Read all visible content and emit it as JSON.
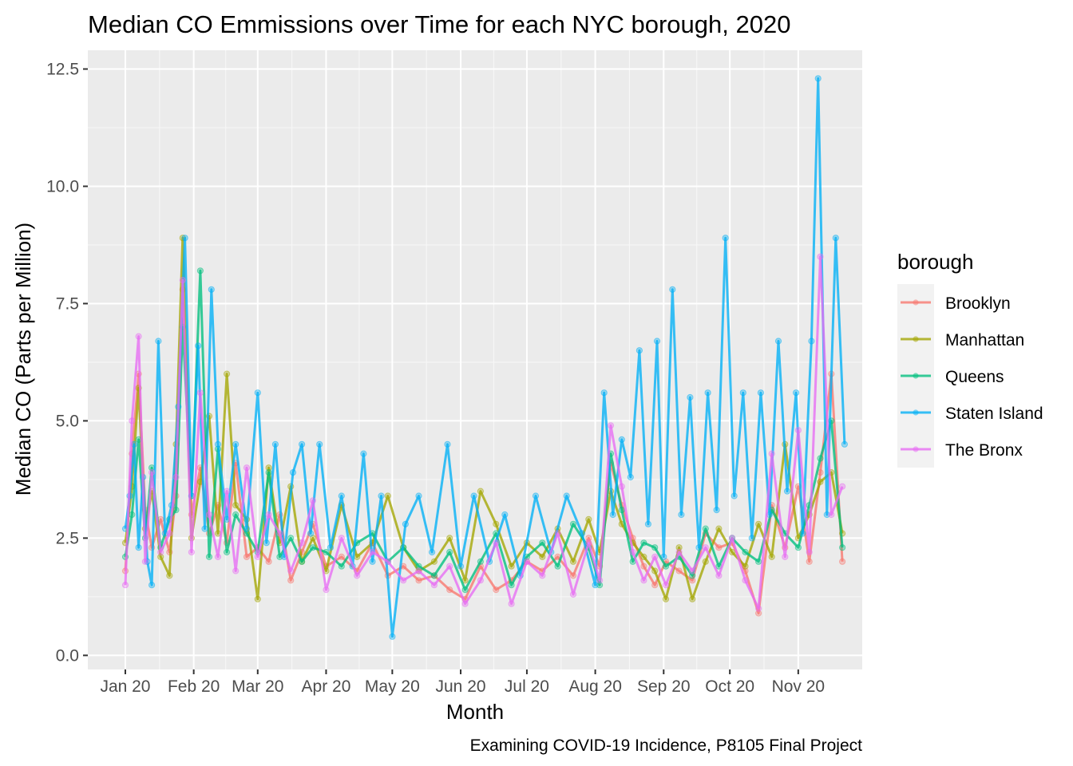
{
  "chart_data": {
    "type": "line",
    "title": "Median CO Emmissions over Time for each NYC borough, 2020",
    "xlabel": "Month",
    "ylabel": "Median CO (Parts per Million)",
    "caption": "Examining COVID-19 Incidence, P8105 Final Project",
    "legend_title": "borough",
    "legend_position": "right",
    "grid": true,
    "x_ticks": [
      "Jan 20",
      "Feb 20",
      "Mar 20",
      "Apr 20",
      "May 20",
      "Jun 20",
      "Jul 20",
      "Aug 20",
      "Sep 20",
      "Oct 20",
      "Nov 20"
    ],
    "x_tick_dates": [
      "2020-01-01",
      "2020-02-01",
      "2020-03-01",
      "2020-04-01",
      "2020-05-01",
      "2020-06-01",
      "2020-07-01",
      "2020-08-01",
      "2020-09-01",
      "2020-10-01",
      "2020-11-01"
    ],
    "xlim": [
      "2019-12-15",
      "2020-11-30"
    ],
    "y_ticks": [
      "0.0",
      "2.5",
      "5.0",
      "7.5",
      "10.0",
      "12.5"
    ],
    "ylim": [
      -0.3,
      12.9
    ],
    "colors": {
      "Brooklyn": "#F8766D",
      "Manhattan": "#A3A500",
      "Queens": "#00BF7D",
      "Staten Island": "#00B0F6",
      "The Bronx": "#E76BF3"
    },
    "series": [
      {
        "name": "Brooklyn",
        "x": [
          "2020-01-01",
          "2020-01-04",
          "2020-01-07",
          "2020-01-10",
          "2020-01-13",
          "2020-01-17",
          "2020-01-21",
          "2020-01-24",
          "2020-01-27",
          "2020-01-31",
          "2020-02-04",
          "2020-02-08",
          "2020-02-12",
          "2020-02-16",
          "2020-02-20",
          "2020-02-25",
          "2020-03-01",
          "2020-03-06",
          "2020-03-11",
          "2020-03-16",
          "2020-03-21",
          "2020-03-26",
          "2020-04-01",
          "2020-04-08",
          "2020-04-15",
          "2020-04-22",
          "2020-04-29",
          "2020-05-06",
          "2020-05-13",
          "2020-05-20",
          "2020-05-27",
          "2020-06-03",
          "2020-06-10",
          "2020-06-17",
          "2020-06-24",
          "2020-07-01",
          "2020-07-08",
          "2020-07-15",
          "2020-07-22",
          "2020-07-29",
          "2020-08-03",
          "2020-08-08",
          "2020-08-13",
          "2020-08-18",
          "2020-08-23",
          "2020-08-28",
          "2020-09-02",
          "2020-09-08",
          "2020-09-14",
          "2020-09-20",
          "2020-09-26",
          "2020-10-02",
          "2020-10-08",
          "2020-10-14",
          "2020-10-20",
          "2020-10-26",
          "2020-11-01",
          "2020-11-06",
          "2020-11-11",
          "2020-11-16",
          "2020-11-21"
        ],
        "values": [
          1.8,
          4.3,
          6.0,
          3.1,
          2.3,
          2.9,
          2.2,
          3.4,
          7.8,
          3.0,
          4.0,
          2.6,
          3.2,
          2.4,
          4.1,
          2.1,
          2.3,
          2.0,
          3.0,
          1.6,
          2.2,
          2.8,
          1.9,
          2.1,
          1.8,
          2.4,
          1.7,
          1.9,
          1.6,
          1.7,
          1.4,
          1.2,
          1.9,
          1.4,
          1.6,
          2.0,
          1.8,
          2.1,
          1.7,
          2.5,
          1.9,
          4.1,
          3.2,
          2.5,
          1.9,
          1.5,
          2.0,
          1.8,
          1.6,
          2.6,
          2.3,
          2.4,
          1.8,
          0.9,
          3.2,
          2.3,
          3.6,
          2.0,
          3.9,
          6.0,
          2.0
        ]
      },
      {
        "name": "Manhattan",
        "x": [
          "2020-01-01",
          "2020-01-04",
          "2020-01-07",
          "2020-01-10",
          "2020-01-13",
          "2020-01-17",
          "2020-01-21",
          "2020-01-24",
          "2020-01-27",
          "2020-01-31",
          "2020-02-04",
          "2020-02-08",
          "2020-02-12",
          "2020-02-16",
          "2020-02-20",
          "2020-02-25",
          "2020-03-01",
          "2020-03-06",
          "2020-03-11",
          "2020-03-16",
          "2020-03-21",
          "2020-03-26",
          "2020-04-01",
          "2020-04-08",
          "2020-04-15",
          "2020-04-22",
          "2020-04-29",
          "2020-05-06",
          "2020-05-13",
          "2020-05-20",
          "2020-05-27",
          "2020-06-03",
          "2020-06-10",
          "2020-06-17",
          "2020-06-24",
          "2020-07-01",
          "2020-07-08",
          "2020-07-15",
          "2020-07-22",
          "2020-07-29",
          "2020-08-03",
          "2020-08-08",
          "2020-08-13",
          "2020-08-18",
          "2020-08-23",
          "2020-08-28",
          "2020-09-02",
          "2020-09-08",
          "2020-09-14",
          "2020-09-20",
          "2020-09-26",
          "2020-10-02",
          "2020-10-08",
          "2020-10-14",
          "2020-10-20",
          "2020-10-26",
          "2020-11-01",
          "2020-11-06",
          "2020-11-11",
          "2020-11-16",
          "2020-11-21"
        ],
        "values": [
          2.4,
          3.6,
          5.7,
          2.7,
          3.5,
          2.1,
          1.7,
          4.5,
          8.9,
          2.5,
          3.7,
          5.1,
          2.6,
          6.0,
          3.2,
          2.9,
          1.2,
          4.0,
          2.4,
          3.6,
          2.0,
          2.5,
          1.8,
          3.2,
          2.1,
          2.4,
          3.4,
          2.3,
          1.8,
          2.0,
          2.5,
          1.6,
          3.5,
          2.8,
          1.9,
          2.4,
          2.1,
          2.7,
          2.0,
          2.9,
          2.2,
          3.5,
          2.8,
          2.4,
          2.1,
          1.8,
          1.2,
          2.3,
          1.2,
          2.0,
          2.7,
          2.2,
          1.9,
          2.8,
          2.1,
          4.5,
          2.5,
          3.0,
          3.7,
          3.9,
          2.6
        ]
      },
      {
        "name": "Queens",
        "x": [
          "2020-01-01",
          "2020-01-04",
          "2020-01-07",
          "2020-01-10",
          "2020-01-13",
          "2020-01-17",
          "2020-01-21",
          "2020-01-24",
          "2020-01-27",
          "2020-01-31",
          "2020-02-04",
          "2020-02-08",
          "2020-02-12",
          "2020-02-16",
          "2020-02-20",
          "2020-02-25",
          "2020-03-01",
          "2020-03-06",
          "2020-03-11",
          "2020-03-16",
          "2020-03-21",
          "2020-03-26",
          "2020-04-01",
          "2020-04-08",
          "2020-04-15",
          "2020-04-22",
          "2020-04-29",
          "2020-05-06",
          "2020-05-13",
          "2020-05-20",
          "2020-05-27",
          "2020-06-03",
          "2020-06-10",
          "2020-06-17",
          "2020-06-24",
          "2020-07-01",
          "2020-07-08",
          "2020-07-15",
          "2020-07-22",
          "2020-07-29",
          "2020-08-03",
          "2020-08-08",
          "2020-08-13",
          "2020-08-18",
          "2020-08-23",
          "2020-08-28",
          "2020-09-02",
          "2020-09-08",
          "2020-09-14",
          "2020-09-20",
          "2020-09-26",
          "2020-10-02",
          "2020-10-08",
          "2020-10-14",
          "2020-10-20",
          "2020-10-26",
          "2020-11-01",
          "2020-11-06",
          "2020-11-11",
          "2020-11-16",
          "2020-11-21"
        ],
        "values": [
          2.1,
          3.0,
          4.6,
          2.5,
          4.0,
          2.3,
          2.9,
          3.1,
          7.0,
          3.4,
          8.2,
          2.1,
          4.4,
          2.2,
          3.0,
          2.6,
          2.2,
          3.9,
          2.1,
          2.5,
          2.0,
          2.3,
          2.2,
          1.9,
          2.4,
          2.6,
          2.0,
          2.3,
          1.9,
          1.7,
          2.2,
          1.4,
          2.0,
          2.6,
          1.5,
          2.1,
          2.4,
          1.9,
          2.8,
          2.3,
          1.5,
          4.3,
          3.1,
          2.0,
          2.4,
          2.3,
          1.9,
          2.1,
          1.7,
          2.7,
          1.9,
          2.5,
          2.2,
          2.0,
          3.1,
          2.6,
          2.3,
          3.2,
          4.2,
          5.0,
          2.3
        ]
      },
      {
        "name": "Staten Island",
        "x": [
          "2020-01-01",
          "2020-01-03",
          "2020-01-05",
          "2020-01-07",
          "2020-01-09",
          "2020-01-11",
          "2020-01-13",
          "2020-01-16",
          "2020-01-19",
          "2020-01-22",
          "2020-01-25",
          "2020-01-28",
          "2020-01-31",
          "2020-02-03",
          "2020-02-06",
          "2020-02-09",
          "2020-02-12",
          "2020-02-16",
          "2020-02-20",
          "2020-02-25",
          "2020-03-01",
          "2020-03-05",
          "2020-03-09",
          "2020-03-13",
          "2020-03-17",
          "2020-03-21",
          "2020-03-25",
          "2020-03-29",
          "2020-04-03",
          "2020-04-08",
          "2020-04-13",
          "2020-04-18",
          "2020-04-22",
          "2020-04-26",
          "2020-05-01",
          "2020-05-07",
          "2020-05-13",
          "2020-05-19",
          "2020-05-26",
          "2020-06-01",
          "2020-06-07",
          "2020-06-14",
          "2020-06-21",
          "2020-06-28",
          "2020-07-05",
          "2020-07-12",
          "2020-07-19",
          "2020-07-26",
          "2020-08-01",
          "2020-08-05",
          "2020-08-09",
          "2020-08-13",
          "2020-08-17",
          "2020-08-21",
          "2020-08-25",
          "2020-08-29",
          "2020-09-01",
          "2020-09-05",
          "2020-09-09",
          "2020-09-13",
          "2020-09-17",
          "2020-09-21",
          "2020-09-25",
          "2020-09-29",
          "2020-10-03",
          "2020-10-07",
          "2020-10-11",
          "2020-10-15",
          "2020-10-19",
          "2020-10-23",
          "2020-10-27",
          "2020-10-31",
          "2020-11-03",
          "2020-11-07",
          "2020-11-10",
          "2020-11-14",
          "2020-11-18",
          "2020-11-22"
        ],
        "values": [
          2.7,
          3.4,
          4.5,
          2.3,
          3.8,
          2.0,
          1.5,
          6.7,
          2.6,
          3.2,
          5.3,
          8.9,
          3.4,
          6.6,
          2.7,
          7.8,
          4.5,
          2.9,
          4.5,
          2.7,
          5.6,
          2.4,
          4.5,
          2.1,
          3.9,
          4.5,
          2.6,
          4.5,
          2.3,
          3.4,
          1.9,
          4.3,
          2.0,
          3.4,
          0.4,
          2.8,
          3.4,
          2.2,
          4.5,
          1.9,
          3.4,
          2.0,
          3.0,
          1.7,
          3.4,
          2.2,
          3.4,
          2.6,
          1.5,
          5.6,
          3.0,
          4.6,
          3.8,
          6.5,
          2.8,
          6.7,
          2.1,
          7.8,
          3.0,
          5.5,
          2.3,
          5.6,
          3.1,
          8.9,
          3.4,
          5.6,
          2.5,
          5.6,
          3.0,
          6.7,
          3.5,
          5.6,
          2.6,
          6.7,
          12.3,
          3.0,
          8.9,
          4.5
        ]
      },
      {
        "name": "The Bronx",
        "x": [
          "2020-01-01",
          "2020-01-04",
          "2020-01-07",
          "2020-01-10",
          "2020-01-13",
          "2020-01-17",
          "2020-01-21",
          "2020-01-24",
          "2020-01-27",
          "2020-01-31",
          "2020-02-04",
          "2020-02-08",
          "2020-02-12",
          "2020-02-16",
          "2020-02-20",
          "2020-02-25",
          "2020-03-01",
          "2020-03-06",
          "2020-03-11",
          "2020-03-16",
          "2020-03-21",
          "2020-03-26",
          "2020-04-01",
          "2020-04-08",
          "2020-04-15",
          "2020-04-22",
          "2020-04-29",
          "2020-05-06",
          "2020-05-13",
          "2020-05-20",
          "2020-05-27",
          "2020-06-03",
          "2020-06-10",
          "2020-06-17",
          "2020-06-24",
          "2020-07-01",
          "2020-07-08",
          "2020-07-15",
          "2020-07-22",
          "2020-07-29",
          "2020-08-03",
          "2020-08-08",
          "2020-08-13",
          "2020-08-18",
          "2020-08-23",
          "2020-08-28",
          "2020-09-02",
          "2020-09-08",
          "2020-09-14",
          "2020-09-20",
          "2020-09-26",
          "2020-10-02",
          "2020-10-08",
          "2020-10-14",
          "2020-10-20",
          "2020-10-26",
          "2020-11-01",
          "2020-11-06",
          "2020-11-11",
          "2020-11-16",
          "2020-11-21"
        ],
        "values": [
          1.5,
          5.0,
          6.8,
          2.0,
          3.9,
          2.2,
          2.6,
          3.8,
          8.0,
          2.2,
          5.6,
          3.0,
          2.1,
          3.5,
          1.8,
          4.0,
          2.1,
          3.0,
          2.6,
          1.8,
          2.4,
          3.3,
          1.4,
          2.5,
          1.7,
          2.2,
          2.0,
          1.6,
          1.8,
          1.5,
          1.9,
          1.1,
          1.6,
          2.4,
          1.1,
          2.0,
          1.7,
          2.6,
          1.3,
          2.4,
          1.6,
          4.9,
          3.6,
          2.2,
          1.6,
          2.1,
          1.5,
          2.2,
          1.8,
          2.3,
          1.7,
          2.5,
          1.6,
          1.0,
          4.3,
          2.1,
          4.8,
          2.2,
          8.5,
          3.0,
          3.6
        ]
      }
    ]
  }
}
